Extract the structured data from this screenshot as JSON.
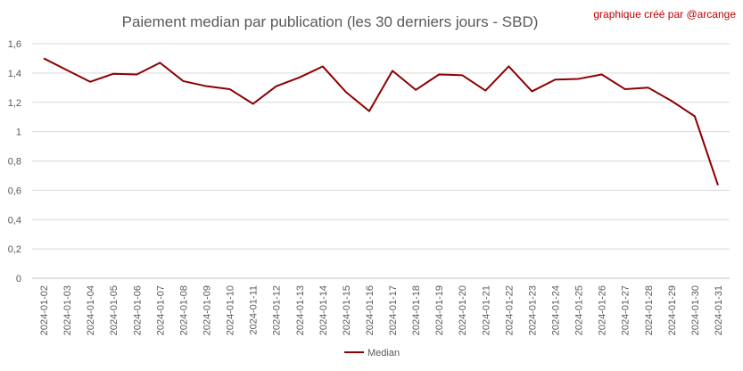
{
  "chart_data": {
    "type": "line",
    "title": "Paiement median par publication (les 30 derniers jours - SBD)",
    "credit": "graphique créé par @arcange",
    "xlabel": "",
    "ylabel": "",
    "ylim": [
      0,
      1.6
    ],
    "yticks": [
      "0",
      "0,2",
      "0,4",
      "0,6",
      "0,8",
      "1",
      "1,2",
      "1,4",
      "1,6"
    ],
    "grid": true,
    "legend_position": "bottom",
    "line_color": "#8b0000",
    "categories": [
      "2024-01-02",
      "2024-01-03",
      "2024-01-04",
      "2024-01-05",
      "2024-01-06",
      "2024-01-07",
      "2024-01-08",
      "2024-01-09",
      "2024-01-10",
      "2024-01-11",
      "2024-01-12",
      "2024-01-13",
      "2024-01-14",
      "2024-01-15",
      "2024-01-16",
      "2024-01-17",
      "2024-01-18",
      "2024-01-19",
      "2024-01-20",
      "2024-01-21",
      "2024-01-22",
      "2024-01-23",
      "2024-01-24",
      "2024-01-25",
      "2024-01-26",
      "2024-01-27",
      "2024-01-28",
      "2024-01-29",
      "2024-01-30",
      "2024-01-31"
    ],
    "series": [
      {
        "name": "Median",
        "values": [
          1.5,
          1.42,
          1.34,
          1.395,
          1.39,
          1.47,
          1.345,
          1.31,
          1.29,
          1.19,
          1.31,
          1.37,
          1.445,
          1.27,
          1.14,
          1.415,
          1.285,
          1.39,
          1.385,
          1.28,
          1.445,
          1.275,
          1.355,
          1.36,
          1.39,
          1.29,
          1.3,
          1.21,
          1.105,
          0.635
        ]
      }
    ]
  }
}
